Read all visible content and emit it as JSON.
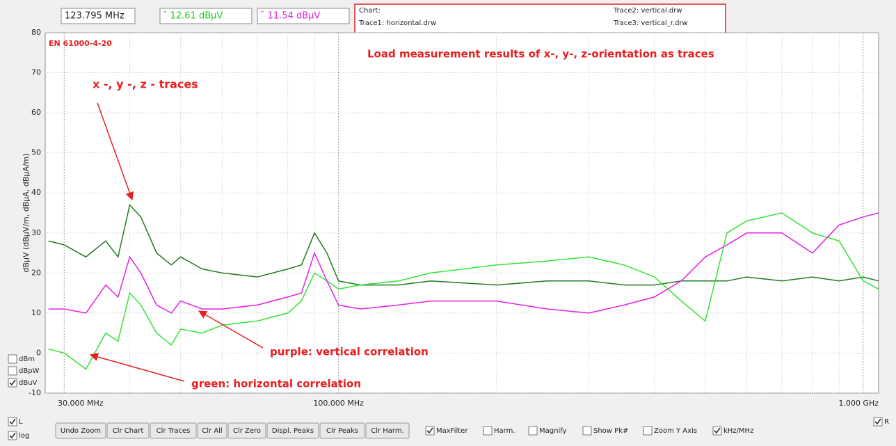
{
  "header": {
    "frequency": "123.795 MHz",
    "marker1": "ˆ 12.61 dBµV",
    "marker2": "ˆ 11.54 dBµV"
  },
  "info": {
    "chart": "Chart:",
    "trace1": "Trace1: horizontal.drw",
    "trace2": "Trace2: vertical.drw",
    "trace3": "Trace3: vertical_r.drw"
  },
  "chart_data": {
    "type": "line",
    "x_scale": "log",
    "y_label": "dBµV (dBµV/m, dBµA, dBµA/m)",
    "annotations": [
      "EN 61000-4-20",
      "Load measurement results of x-, y-, z-orientation as traces",
      "x -, y -, z - traces",
      "purple: vertical correlation",
      "green: horizontal correlation"
    ],
    "xlim": [
      27.6,
      1070
    ],
    "xticks": [
      {
        "value": 30,
        "label": "30.000 MHz"
      },
      {
        "value": 100,
        "label": "100.000 MHz"
      },
      {
        "value": 1000,
        "label": "1.000 GHz"
      }
    ],
    "minor_xticks": [
      40,
      50,
      60,
      70,
      80,
      90,
      200,
      300,
      400,
      500,
      600,
      700,
      800,
      900
    ],
    "ylim": [
      -10,
      80
    ],
    "yticks": [
      -10,
      0,
      10,
      20,
      30,
      40,
      50,
      60,
      70,
      80
    ],
    "grid": true,
    "x": [
      28,
      30,
      33,
      36,
      38,
      40,
      42,
      45,
      48,
      50,
      55,
      60,
      70,
      80,
      85,
      90,
      95,
      100,
      110,
      130,
      150,
      200,
      250,
      300,
      350,
      400,
      450,
      500,
      550,
      600,
      700,
      800,
      900,
      1000,
      1070
    ],
    "series": [
      {
        "color": "#1e7b1e",
        "values": [
          28,
          27,
          24,
          28,
          24,
          37,
          34,
          25,
          22,
          24,
          21,
          20,
          19,
          21,
          22,
          30,
          25,
          18,
          17,
          17,
          18,
          17,
          18,
          18,
          17,
          17,
          18,
          18,
          18,
          19,
          18,
          19,
          18,
          19,
          18
        ]
      },
      {
        "color": "#33e233",
        "values": [
          1,
          0,
          -4,
          5,
          3,
          15,
          12,
          5,
          2,
          6,
          5,
          7,
          8,
          10,
          13,
          20,
          18,
          16,
          17,
          18,
          20,
          22,
          23,
          24,
          22,
          19,
          13,
          8,
          30,
          33,
          35,
          30,
          28,
          18,
          16
        ]
      },
      {
        "color": "#e61ee6",
        "values": [
          11,
          11,
          10,
          17,
          14,
          24,
          20,
          12,
          10,
          13,
          11,
          11,
          12,
          14,
          15,
          25,
          18,
          12,
          11,
          12,
          13,
          13,
          11,
          10,
          12,
          14,
          18,
          24,
          27,
          30,
          30,
          25,
          32,
          34,
          35
        ]
      }
    ]
  },
  "unit_checkboxes": [
    {
      "label": "dBm",
      "checked": false
    },
    {
      "label": "dBpW",
      "checked": false
    },
    {
      "label": "dBuV",
      "checked": true
    }
  ],
  "scale_checkboxes": [
    {
      "label": "L",
      "checked": true
    },
    {
      "label": "log",
      "checked": true
    }
  ],
  "buttons": [
    "Undo Zoom",
    "Clr Chart",
    "Clr Traces",
    "Clr All",
    "Clr Zero",
    "Displ. Peaks",
    "Clr Peaks",
    "Clr Harm."
  ],
  "option_checkboxes": [
    {
      "label": "MaxFilter",
      "checked": true
    },
    {
      "label": "Harm.",
      "checked": false
    },
    {
      "label": "Magnify",
      "checked": false
    },
    {
      "label": "Show Pk#",
      "checked": false
    },
    {
      "label": "Zoom Y Axis",
      "checked": false
    },
    {
      "label": "kHz/MHz",
      "checked": true
    },
    {
      "label": "R",
      "checked": true
    }
  ]
}
